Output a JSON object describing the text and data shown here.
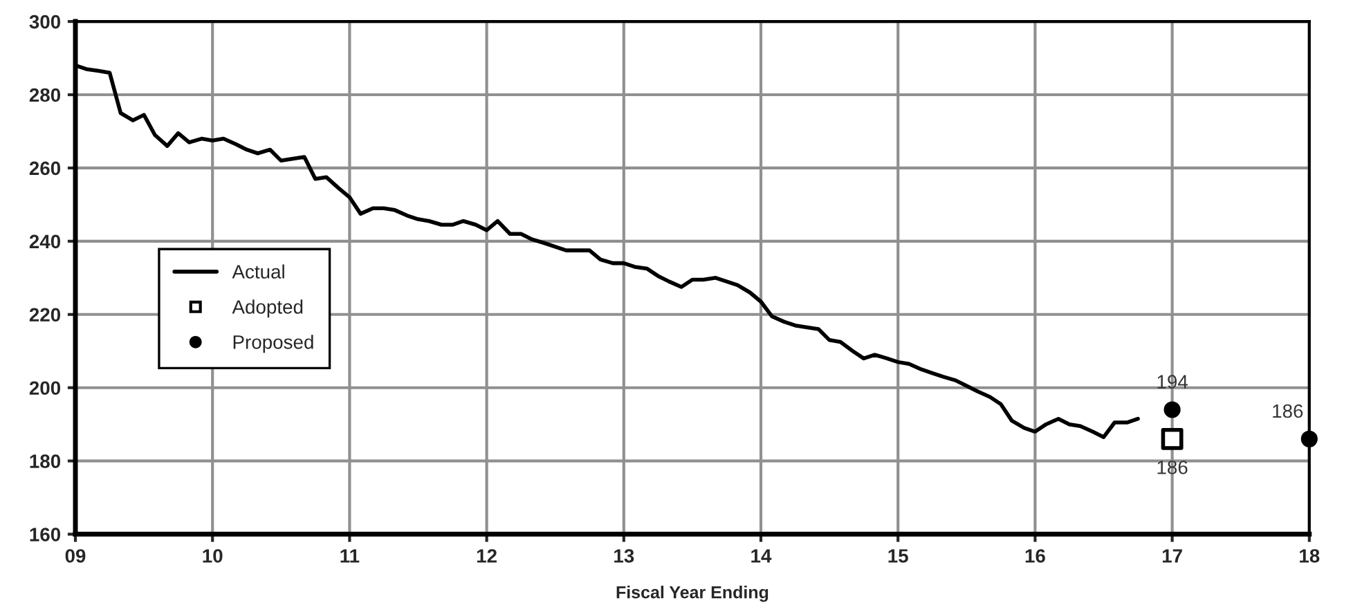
{
  "chart_data": {
    "type": "line",
    "xlabel": "Fiscal Year Ending",
    "xlim": [
      9,
      18
    ],
    "xticks": [
      {
        "value": 9,
        "label": "09"
      },
      10,
      11,
      12,
      13,
      14,
      15,
      16,
      17,
      18
    ],
    "ylim": [
      160,
      300
    ],
    "yticks": [
      160,
      180,
      200,
      220,
      240,
      260,
      280,
      300
    ],
    "grid": true,
    "legend": "left",
    "series": [
      {
        "name": "Actual",
        "color": "#000000",
        "marker": "none",
        "line_style": "solid",
        "x": [
          9.0,
          9.08,
          9.17,
          9.25,
          9.33,
          9.42,
          9.5,
          9.58,
          9.67,
          9.75,
          9.83,
          9.92,
          10.0,
          10.08,
          10.17,
          10.25,
          10.33,
          10.42,
          10.5,
          10.58,
          10.67,
          10.75,
          10.83,
          10.92,
          11.0,
          11.08,
          11.17,
          11.25,
          11.33,
          11.42,
          11.5,
          11.58,
          11.67,
          11.75,
          11.83,
          11.92,
          12.0,
          12.08,
          12.17,
          12.25,
          12.33,
          12.42,
          12.5,
          12.58,
          12.67,
          12.75,
          12.83,
          12.92,
          13.0,
          13.08,
          13.17,
          13.25,
          13.33,
          13.42,
          13.5,
          13.58,
          13.67,
          13.75,
          13.83,
          13.92,
          14.0,
          14.08,
          14.17,
          14.25,
          14.33,
          14.42,
          14.5,
          14.58,
          14.67,
          14.75,
          14.83,
          14.92,
          15.0,
          15.08,
          15.17,
          15.25,
          15.33,
          15.42,
          15.5,
          15.58,
          15.67,
          15.75,
          15.83,
          15.92,
          16.0,
          16.08,
          16.17,
          16.25,
          16.33,
          16.42,
          16.5,
          16.58,
          16.67,
          16.75
        ],
        "values": [
          288,
          287,
          286.5,
          286,
          275,
          273,
          274.5,
          269,
          266,
          269.5,
          267,
          268,
          267.5,
          268,
          266.5,
          265,
          264,
          265,
          262,
          262.5,
          263,
          257,
          257.5,
          254.5,
          252,
          247.5,
          249,
          249,
          248.5,
          247,
          246,
          245.5,
          244.5,
          244.5,
          245.5,
          244.5,
          243,
          245.5,
          242,
          242,
          240.5,
          239.5,
          238.5,
          237.5,
          237.5,
          237.5,
          235,
          234,
          234,
          233,
          232.5,
          230.5,
          229,
          227.5,
          229.5,
          229.5,
          230,
          229,
          228,
          226,
          223.5,
          219.5,
          218,
          217,
          216.5,
          216,
          213,
          212.5,
          210,
          208,
          209,
          208,
          207,
          206.5,
          205,
          204,
          203,
          202,
          200.5,
          199,
          197.5,
          195.5,
          191,
          189,
          188,
          190,
          191.5,
          190,
          189.5,
          188,
          186.5,
          190.5,
          190.5,
          191.5
        ]
      },
      {
        "name": "Adopted",
        "type": "scatter",
        "color": "#000000",
        "marker": "square",
        "x": [
          17
        ],
        "values": [
          186
        ],
        "value_labels": [
          "186"
        ]
      },
      {
        "name": "Proposed",
        "type": "scatter",
        "color": "#000000",
        "marker": "circle",
        "x": [
          17,
          18
        ],
        "values": [
          194,
          186
        ],
        "value_labels": [
          "194",
          "186"
        ]
      }
    ]
  }
}
